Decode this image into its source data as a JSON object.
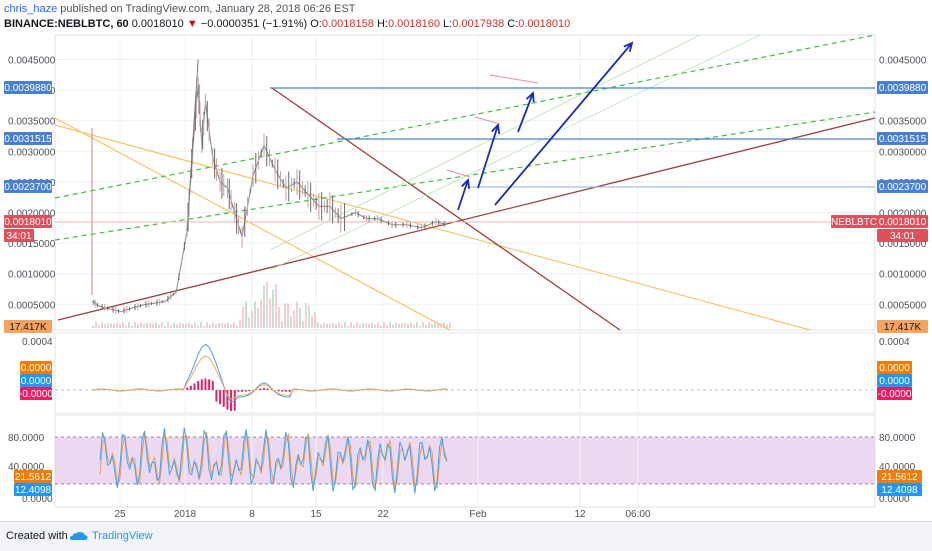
{
  "header": {
    "author": "chris_haze",
    "published": "published on TradingView.com, January 28, 2018 06:26 EST",
    "symbol": "BINANCE:NEBLBTC, 60",
    "last": "0.0018010",
    "change": "−0.0000351 (−1.91%)",
    "o_label": "O:",
    "o": "0.0018158",
    "h_label": "H:",
    "h": "0.0018160",
    "l_label": "L:",
    "l": "0.0017938",
    "c_label": "C:",
    "c": "0.0018010"
  },
  "footer": {
    "created": "Created with",
    "brand": "TradingView",
    "logo": "tradingview-cloud-icon"
  },
  "colors": {
    "price": "#8a8a8a",
    "sma": "#ffb74d",
    "trend_brown": "#a0403d",
    "green_dash": "#3fbf3f",
    "blue_line": "#4a7fd4",
    "arrow": "#1a2bb8",
    "pink": "#f08aa0",
    "macd": "#4aa3df",
    "signal": "#f7a35c",
    "hist": "#e91e63",
    "stoch_k": "#4aa3df",
    "stoch_d": "#e6a05c",
    "band": "#e1bee7"
  },
  "chart_data": [
    {
      "type": "line",
      "name": "NEBLBTC 60",
      "x_ticks": [
        "25",
        "2018",
        "8",
        "15",
        "22",
        "Feb",
        "12",
        "06:00"
      ],
      "y_ticks": [
        "0.0045000",
        "0.0040000",
        "0.0035000",
        "0.0030000",
        "0.0025000",
        "0.0020000",
        "0.0015000",
        "0.0010000",
        "0.0005000"
      ],
      "ylim": [
        8e-05,
        0.0049
      ],
      "price_series": {
        "t": [
          0,
          2,
          5,
          8,
          11,
          14,
          17,
          20,
          23,
          26,
          27,
          28,
          29,
          30,
          31,
          33,
          35,
          37,
          39,
          41,
          44,
          47,
          50,
          53,
          56,
          59,
          62,
          65,
          68,
          72,
          75,
          78,
          82,
          86,
          90,
          94,
          97
        ],
        "v": [
          0.00055,
          0.00047,
          0.00042,
          0.00038,
          0.00044,
          0.00049,
          0.00052,
          0.00055,
          0.0007,
          0.0017,
          0.0026,
          0.0034,
          0.0041,
          0.0031,
          0.0038,
          0.0029,
          0.0025,
          0.0024,
          0.002,
          0.0016,
          0.0026,
          0.0031,
          0.0027,
          0.0024,
          0.0025,
          0.0023,
          0.0021,
          0.0021,
          0.0019,
          0.002,
          0.0019,
          0.0019,
          0.0018,
          0.0018,
          0.00175,
          0.00185,
          0.0018
        ]
      },
      "price_labels": [
        {
          "value": "0.0039880",
          "kind": "level"
        },
        {
          "value": "0.0031515",
          "kind": "level"
        },
        {
          "value": "0.0023700",
          "kind": "level"
        },
        {
          "value": "0.0018010",
          "kind": "last"
        }
      ],
      "countdown": "34:01",
      "volume_label": "17.417K",
      "series_label": "NEBLBTC"
    },
    {
      "type": "line",
      "name": "MACD",
      "y_ticks": [
        "0.0004",
        "0.0000",
        "-0.0000"
      ],
      "values": {
        "signal": "0.0000",
        "macd": "0.0000",
        "hist": "-0.0000"
      }
    },
    {
      "type": "line",
      "name": "Stochastic RSI",
      "y_ticks": [
        "80.0000",
        "40.0000",
        "0.0000"
      ],
      "band": [
        20,
        80
      ],
      "values": {
        "k": "21.5612",
        "d": "12.4098"
      }
    }
  ]
}
